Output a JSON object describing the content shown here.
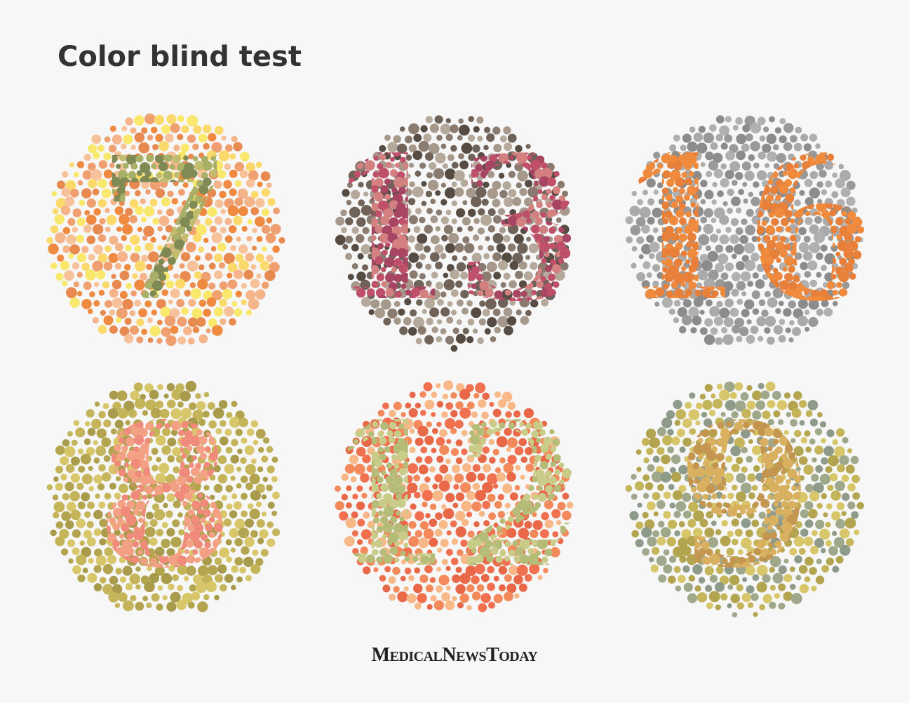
{
  "header": {
    "title": "Color blind test"
  },
  "plates": [
    {
      "figure": "7",
      "background_colors": [
        "#f0a070",
        "#f5b48a",
        "#fcd96b",
        "#f08a40",
        "#f9e86b",
        "#e8894f",
        "#f7c29a"
      ],
      "figure_colors": [
        "#a8b068",
        "#7f8a55",
        "#c2bc6f"
      ]
    },
    {
      "figure": "13",
      "background_colors": [
        "#8a7b70",
        "#6e6259",
        "#a6998c",
        "#574c43",
        "#b5a99c"
      ],
      "figure_colors": [
        "#c0506a",
        "#a84563",
        "#d48081"
      ]
    },
    {
      "figure": "16",
      "background_colors": [
        "#999999",
        "#aaaaaa",
        "#8c8c8c",
        "#b0b0b0"
      ],
      "figure_colors": [
        "#f08a3c",
        "#e8803a"
      ]
    },
    {
      "figure": "8",
      "background_colors": [
        "#c4b45a",
        "#b3a54f",
        "#d8c66a",
        "#a89b4c"
      ],
      "figure_colors": [
        "#f08a7a",
        "#f4a084"
      ]
    },
    {
      "figure": "12",
      "background_colors": [
        "#f07050",
        "#f48a5c",
        "#f8b888",
        "#e86848"
      ],
      "figure_colors": [
        "#c8cc88",
        "#b4bc78"
      ]
    },
    {
      "figure": "9",
      "background_colors": [
        "#c4b45a",
        "#d8c66a",
        "#a0a88c",
        "#8e9a8a",
        "#b3a54f"
      ],
      "figure_colors": [
        "#d8b060",
        "#c49650"
      ]
    }
  ],
  "footer": {
    "brand": "MedicalNewsToday"
  }
}
